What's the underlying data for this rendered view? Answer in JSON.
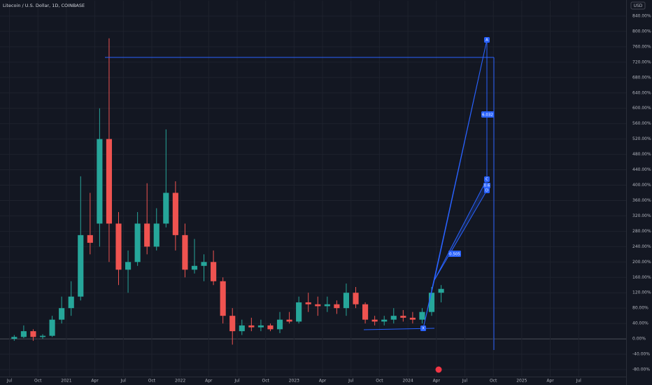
{
  "chart_data": {
    "type": "candlestick",
    "title": "Litecoin / U.S. Dollar, 1D, COINBASE",
    "y_unit_label": "USD",
    "x": [
      "2020-07",
      "2020-08",
      "2020-09",
      "2020-10",
      "2020-11",
      "2020-12",
      "2021-01",
      "2021-02",
      "2021-03",
      "2021-04",
      "2021-05",
      "2021-06",
      "2021-07",
      "2021-08",
      "2021-09",
      "2021-10",
      "2021-11",
      "2021-12",
      "2022-01",
      "2022-02",
      "2022-03",
      "2022-04",
      "2022-05",
      "2022-06",
      "2022-07",
      "2022-08",
      "2022-09",
      "2022-10",
      "2022-11",
      "2022-12",
      "2023-01",
      "2023-02",
      "2023-03",
      "2023-04",
      "2023-05",
      "2023-06",
      "2023-07",
      "2023-08",
      "2023-09",
      "2023-10",
      "2023-11",
      "2023-12",
      "2024-01",
      "2024-02",
      "2024-03",
      "2024-04"
    ],
    "open": [
      0,
      5,
      20,
      5,
      8,
      50,
      80,
      110,
      270,
      300,
      520,
      300,
      180,
      200,
      300,
      240,
      300,
      380,
      270,
      180,
      190,
      200,
      150,
      60,
      20,
      35,
      30,
      35,
      25,
      50,
      45,
      95,
      90,
      85,
      90,
      80,
      120,
      90,
      50,
      45,
      50,
      60,
      55,
      50,
      70,
      120
    ],
    "high": [
      10,
      35,
      25,
      12,
      60,
      110,
      150,
      423,
      380,
      600,
      782,
      330,
      230,
      330,
      405,
      340,
      545,
      410,
      300,
      260,
      220,
      230,
      160,
      80,
      50,
      55,
      50,
      40,
      70,
      70,
      110,
      120,
      110,
      110,
      100,
      144,
      135,
      95,
      60,
      60,
      80,
      75,
      70,
      80,
      135,
      140
    ],
    "low": [
      -5,
      2,
      -5,
      0,
      5,
      40,
      60,
      100,
      220,
      240,
      200,
      140,
      120,
      190,
      220,
      230,
      290,
      230,
      160,
      170,
      150,
      140,
      40,
      -15,
      10,
      20,
      20,
      20,
      15,
      40,
      40,
      70,
      60,
      70,
      65,
      60,
      80,
      40,
      35,
      35,
      40,
      45,
      40,
      40,
      60,
      95
    ],
    "close": [
      5,
      20,
      5,
      8,
      50,
      80,
      110,
      270,
      250,
      520,
      300,
      180,
      200,
      300,
      240,
      300,
      380,
      270,
      180,
      190,
      200,
      150,
      60,
      20,
      35,
      30,
      35,
      25,
      50,
      45,
      95,
      90,
      85,
      90,
      80,
      120,
      90,
      50,
      45,
      50,
      60,
      55,
      50,
      70,
      120,
      130
    ],
    "up_color": "#26a69a",
    "down_color": "#ef5350",
    "xlim": [
      "2020-06",
      "2025-12"
    ],
    "xticks": [
      {
        "value": "2020-07",
        "label": "Jul"
      },
      {
        "value": "2020-10",
        "label": "Oct"
      },
      {
        "value": "2021-01",
        "label": "2021"
      },
      {
        "value": "2021-04",
        "label": "Apr"
      },
      {
        "value": "2021-07",
        "label": "Jul"
      },
      {
        "value": "2021-10",
        "label": "Oct"
      },
      {
        "value": "2022-01",
        "label": "2022"
      },
      {
        "value": "2022-04",
        "label": "Apr"
      },
      {
        "value": "2022-07",
        "label": "Jul"
      },
      {
        "value": "2022-10",
        "label": "Oct"
      },
      {
        "value": "2023-01",
        "label": "2023"
      },
      {
        "value": "2023-04",
        "label": "Apr"
      },
      {
        "value": "2023-07",
        "label": "Jul"
      },
      {
        "value": "2023-10",
        "label": "Oct"
      },
      {
        "value": "2024-01",
        "label": "2024"
      },
      {
        "value": "2024-04",
        "label": "Apr"
      },
      {
        "value": "2024-07",
        "label": "Jul"
      },
      {
        "value": "2024-10",
        "label": "Oct"
      },
      {
        "value": "2025-01",
        "label": "2025"
      },
      {
        "value": "2025-04",
        "label": "Apr"
      },
      {
        "value": "2025-07",
        "label": "Jul"
      }
    ],
    "ylim": [
      -100,
      880
    ],
    "yticks": [
      {
        "value": 840,
        "label": "840.00%"
      },
      {
        "value": 800,
        "label": "800.00%"
      },
      {
        "value": 760,
        "label": "760.00%"
      },
      {
        "value": 720,
        "label": "720.00%"
      },
      {
        "value": 680,
        "label": "680.00%"
      },
      {
        "value": 640,
        "label": "640.00%"
      },
      {
        "value": 600,
        "label": "600.00%"
      },
      {
        "value": 560,
        "label": "560.00%"
      },
      {
        "value": 520,
        "label": "520.00%"
      },
      {
        "value": 480,
        "label": "480.00%"
      },
      {
        "value": 440,
        "label": "440.00%"
      },
      {
        "value": 400,
        "label": "400.00%"
      },
      {
        "value": 360,
        "label": "360.00%"
      },
      {
        "value": 320,
        "label": "320.00%"
      },
      {
        "value": 280,
        "label": "280.00%"
      },
      {
        "value": 240,
        "label": "240.00%"
      },
      {
        "value": 200,
        "label": "200.00%"
      },
      {
        "value": 160,
        "label": "160.00%"
      },
      {
        "value": 120,
        "label": "120.00%"
      },
      {
        "value": 80,
        "label": "80.00%"
      },
      {
        "value": 40,
        "label": "40.00%"
      },
      {
        "value": 0,
        "label": "0.00%"
      },
      {
        "value": -40,
        "label": "-40.00%"
      },
      {
        "value": -80,
        "label": "-80.00%"
      }
    ],
    "grid": true,
    "annotations": {
      "points": [
        "X",
        "A",
        "C",
        "D"
      ],
      "ratios": [
        "0.505",
        "6.032",
        "0.6"
      ]
    }
  }
}
